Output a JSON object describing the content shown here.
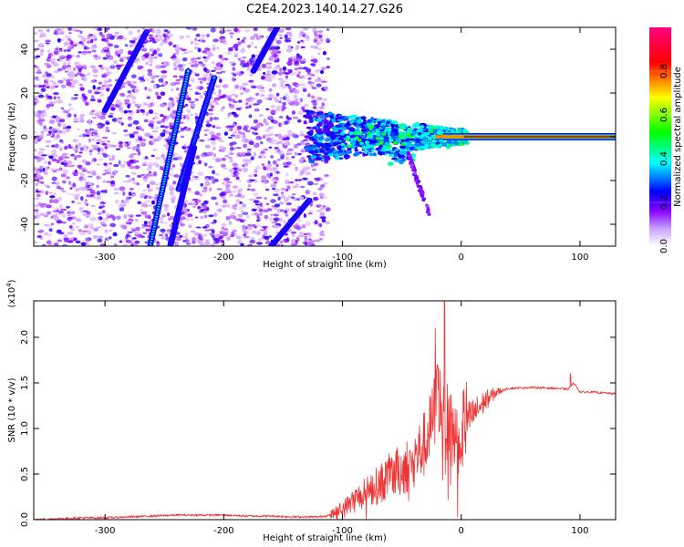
{
  "title": "C2E4.2023.140.14.27.G26",
  "chart_data": [
    {
      "type": "heatmap",
      "xlabel": "Height of straight line (km)",
      "ylabel": "Frequency (Hz)",
      "xlim": [
        -360,
        130
      ],
      "ylim": [
        -50,
        50
      ],
      "xticks": [
        -300,
        -200,
        -100,
        0,
        100
      ],
      "yticks": [
        -40,
        -20,
        0,
        20,
        40
      ],
      "xtick_labels": [
        "-300",
        "-200",
        "-100",
        "0",
        "100"
      ],
      "ytick_labels": [
        "-40",
        "-20",
        "0",
        "20",
        "40"
      ],
      "colorbar": {
        "label": "Normalized spectral amplitude",
        "range": [
          0,
          1
        ],
        "ticks": [
          0.0,
          0.2,
          0.4,
          0.6,
          0.8
        ],
        "tick_labels": [
          "0.0",
          "0.2",
          "0.4",
          "0.6",
          "0.8"
        ],
        "colors": [
          "#ffffff",
          "#8a00ff",
          "#0000ff",
          "#00ffff",
          "#00ff00",
          "#ffff00",
          "#ff0000",
          "#ff0080"
        ]
      },
      "features": [
        {
          "kind": "streak",
          "x": [
            -262,
            -230
          ],
          "y": [
            -50,
            30
          ],
          "amplitude": 0.5
        },
        {
          "kind": "streak",
          "x": [
            -238,
            -208
          ],
          "y": [
            -24,
            27
          ],
          "amplitude": 0.45
        },
        {
          "kind": "streak",
          "x": [
            -245,
            -225
          ],
          "y": [
            -50,
            -5
          ],
          "amplitude": 0.3
        },
        {
          "kind": "streak",
          "x": [
            -160,
            -128
          ],
          "y": [
            -50,
            -29
          ],
          "amplitude": 0.35
        },
        {
          "kind": "streak",
          "x": [
            -175,
            -155
          ],
          "y": [
            30,
            50
          ],
          "amplitude": 0.25
        },
        {
          "kind": "streak",
          "x": [
            -300,
            -265
          ],
          "y": [
            12,
            48
          ],
          "amplitude": 0.2
        },
        {
          "kind": "tone",
          "x": [
            0,
            130
          ],
          "y": 0,
          "amplitude": 0.85
        }
      ]
    },
    {
      "type": "line",
      "xlabel": "Height of straight line (km)",
      "ylabel": "SNR (10 * v/v)",
      "y_multiplier": "(x10",
      "y_multiplier_exp": "4",
      "y_multiplier_close": ")",
      "xlim": [
        -360,
        130
      ],
      "ylim": [
        0,
        2.4
      ],
      "xticks": [
        -300,
        -200,
        -100,
        0,
        100
      ],
      "yticks": [
        0.0,
        0.5,
        1.0,
        1.5,
        2.0
      ],
      "xtick_labels": [
        "-300",
        "-200",
        "-100",
        "0",
        "100"
      ],
      "ytick_labels": [
        "0.0",
        "0.5",
        "1.0",
        "1.5",
        "2.0"
      ],
      "color": "#ee3333",
      "series": [
        {
          "x": [
            -360,
            -340,
            -320,
            -300,
            -280,
            -260,
            -240,
            -220,
            -200,
            -180,
            -160,
            -140,
            -120,
            -110,
            -100,
            -90,
            -80,
            -70,
            -60,
            -50,
            -40,
            -30,
            -25,
            -20,
            -15,
            -10,
            -5,
            0,
            10,
            20,
            30,
            40,
            60,
            80,
            90,
            95,
            100,
            110,
            120,
            130
          ],
          "y": [
            0.0,
            0.01,
            0.02,
            0.02,
            0.03,
            0.04,
            0.05,
            0.05,
            0.05,
            0.04,
            0.04,
            0.03,
            0.03,
            0.05,
            0.12,
            0.22,
            0.3,
            0.38,
            0.48,
            0.55,
            0.65,
            0.85,
            1.05,
            1.4,
            1.2,
            0.95,
            0.95,
            1.0,
            1.15,
            1.3,
            1.4,
            1.44,
            1.45,
            1.44,
            1.43,
            1.5,
            1.4,
            1.4,
            1.39,
            1.38
          ]
        }
      ],
      "peaks": [
        {
          "x": -22,
          "y": 2.1
        },
        {
          "x": -14,
          "y": 2.4
        },
        {
          "x": -20,
          "y": 1.7
        },
        {
          "x": 92,
          "y": 1.6
        }
      ]
    }
  ]
}
